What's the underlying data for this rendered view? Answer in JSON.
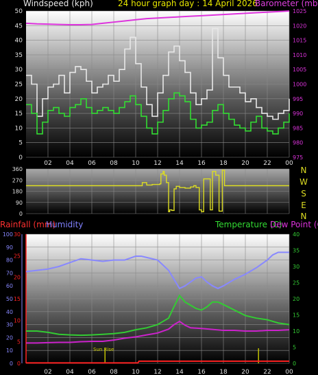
{
  "top": {
    "left_title": "Windspeed (kph)",
    "center_title": "24 hour graph day : 14 April 2026",
    "right_title": "Barometer (mb)"
  },
  "bottom": {
    "rain_title": "Rainfall (mm)",
    "humidity_title": "Humidity",
    "temp_title": "Temperature (C)",
    "dew_title": "Dew Point (C)",
    "sunrise_label": "Sun Rise"
  },
  "colors": {
    "background": "#000000",
    "grid": "#8a8a8a",
    "wind_avg": "#33dd33",
    "wind_gust": "#e8e8e8",
    "barometer": "#dd33dd",
    "direction": "#dddd22",
    "temperature": "#33cc33",
    "dew_point": "#cc22cc",
    "humidity": "#8888ff",
    "rain": "#ff2222",
    "rain_rate": "#cccc00",
    "compass": "#dddd22",
    "left_axis_text": "#dddddd"
  },
  "chart_data": [
    {
      "type": "line",
      "title": "24 hour graph day : 14 April 2026",
      "x_ticks": [
        "02",
        "04",
        "06",
        "08",
        "10",
        "12",
        "14",
        "16",
        "18",
        "20",
        "22",
        "00"
      ],
      "x_range_hours": [
        0,
        24
      ],
      "ylabel": "Windspeed (kph)",
      "ylim": [
        0,
        50
      ],
      "y_ticks": [
        0,
        5,
        10,
        15,
        20,
        25,
        30,
        35,
        40,
        45,
        50
      ],
      "y2label": "Barometer (mb)",
      "y2lim": [
        975,
        1025
      ],
      "y2_ticks": [
        975,
        980,
        985,
        990,
        995,
        1000,
        1005,
        1010,
        1015,
        1020,
        1025
      ],
      "grid": true,
      "series": [
        {
          "name": "Windspeed",
          "axis": "left",
          "color_key": "wind_avg",
          "x": [
            0,
            0.5,
            1,
            1.5,
            2,
            2.5,
            3,
            3.5,
            4,
            4.5,
            5,
            5.5,
            6,
            6.5,
            7,
            7.5,
            8,
            8.5,
            9,
            9.5,
            10,
            10.5,
            11,
            11.5,
            12,
            12.5,
            13,
            13.5,
            14,
            14.5,
            15,
            15.5,
            16,
            16.5,
            17,
            17.5,
            18,
            18.5,
            19,
            19.5,
            20,
            20.5,
            21,
            21.5,
            22,
            22.5,
            23,
            23.5,
            24
          ],
          "y": [
            18,
            15,
            8,
            12,
            16,
            17,
            15,
            14,
            17,
            18,
            20,
            17,
            15,
            16,
            17,
            16,
            15,
            17,
            19,
            21,
            18,
            14,
            10,
            8,
            12,
            16,
            20,
            22,
            21,
            19,
            13,
            10,
            11,
            12,
            16,
            18,
            15,
            13,
            11,
            10,
            9,
            12,
            14,
            10,
            9,
            8,
            10,
            12,
            15
          ]
        },
        {
          "name": "Gust",
          "axis": "left",
          "color_key": "wind_gust",
          "x": [
            0,
            0.5,
            1,
            1.5,
            2,
            2.5,
            3,
            3.5,
            4,
            4.5,
            5,
            5.5,
            6,
            6.5,
            7,
            7.5,
            8,
            8.5,
            9,
            9.5,
            10,
            10.5,
            11,
            11.5,
            12,
            12.5,
            13,
            13.5,
            14,
            14.5,
            15,
            15.5,
            16,
            16.5,
            17,
            17.5,
            18,
            18.5,
            19,
            19.5,
            20,
            20.5,
            21,
            21.5,
            22,
            22.5,
            23,
            23.5,
            24
          ],
          "y": [
            28,
            25,
            14,
            20,
            24,
            25,
            28,
            22,
            29,
            31,
            30,
            26,
            22,
            24,
            25,
            28,
            26,
            30,
            37,
            41,
            32,
            24,
            18,
            14,
            22,
            28,
            36,
            38,
            33,
            29,
            22,
            18,
            20,
            23,
            44,
            34,
            28,
            24,
            24,
            22,
            19,
            20,
            17,
            15,
            14,
            13,
            15,
            16,
            20
          ]
        },
        {
          "name": "Barometer",
          "axis": "right",
          "color_key": "barometer",
          "x": [
            0,
            1,
            2,
            3,
            4,
            5,
            6,
            7,
            8,
            9,
            10,
            11,
            12,
            13,
            14,
            15,
            16,
            17,
            18,
            19,
            20,
            21,
            22,
            23,
            24
          ],
          "y": [
            1020.8,
            1020.6,
            1020.5,
            1020.4,
            1020.3,
            1020.3,
            1020.4,
            1020.8,
            1021.2,
            1021.6,
            1022,
            1022.4,
            1022.6,
            1022.8,
            1023,
            1023.2,
            1023.4,
            1023.6,
            1023.8,
            1024,
            1024.2,
            1024.4,
            1024.6,
            1024.8,
            1025
          ]
        }
      ]
    },
    {
      "type": "line",
      "ylabel": "Wind Direction",
      "ylim": [
        0,
        360
      ],
      "y_ticks": [
        0,
        90,
        180,
        270,
        360
      ],
      "y_tick_labels": [
        "0",
        "90",
        "180",
        "270",
        "360"
      ],
      "compass_labels": [
        "N",
        "W",
        "S",
        "E",
        "N"
      ],
      "x_range_hours": [
        0,
        24
      ],
      "grid": true,
      "series": [
        {
          "name": "Direction",
          "color_key": "direction",
          "x": [
            0,
            10.5,
            10.6,
            11,
            11.5,
            12.2,
            12.3,
            12.5,
            12.6,
            12.8,
            13,
            13.1,
            13.3,
            13.5,
            13.7,
            14,
            14.5,
            15,
            15.3,
            15.5,
            15.8,
            16,
            16.2,
            16.5,
            16.8,
            17,
            17.3,
            17.6,
            17.9,
            18.1,
            20,
            24
          ],
          "y": [
            225,
            225,
            250,
            230,
            235,
            240,
            320,
            340,
            310,
            250,
            15,
            30,
            25,
            200,
            220,
            210,
            205,
            215,
            225,
            210,
            30,
            15,
            280,
            280,
            30,
            340,
            310,
            20,
            350,
            225,
            225,
            225
          ]
        }
      ]
    },
    {
      "type": "line",
      "x_ticks": [
        "02",
        "04",
        "06",
        "08",
        "10",
        "12",
        "14",
        "16",
        "18",
        "20",
        "22",
        "00"
      ],
      "x_range_hours": [
        0,
        24
      ],
      "grid": true,
      "axes": {
        "humidity": {
          "label": "Humidity",
          "lim": [
            0,
            100
          ],
          "ticks": [
            0,
            10,
            20,
            30,
            40,
            50,
            60,
            70,
            80,
            90,
            100
          ]
        },
        "rainfall": {
          "label": "Rainfall (mm)",
          "lim": [
            0,
            30
          ],
          "ticks": [
            0,
            5,
            10,
            15,
            20,
            25,
            30
          ]
        },
        "temperature": {
          "label": "Temperature (C)",
          "lim": [
            0,
            40
          ],
          "ticks": [
            0,
            5,
            10,
            15,
            20,
            25,
            30,
            35,
            40
          ]
        }
      },
      "annotations": [
        {
          "text": "Sun Rise",
          "x_hour": 7.2
        }
      ],
      "series": [
        {
          "name": "Humidity",
          "axis": "humidity",
          "color_key": "humidity",
          "x": [
            0,
            1,
            2,
            3,
            4,
            5,
            6,
            7,
            8,
            9,
            10,
            10.5,
            11,
            12,
            13,
            13.5,
            14,
            14.5,
            15,
            15.5,
            16,
            16.5,
            17,
            17.5,
            18,
            19,
            20,
            21,
            22,
            22.5,
            23,
            24
          ],
          "y": [
            71,
            72,
            73,
            75,
            78,
            81,
            80,
            79,
            80,
            80,
            83,
            83,
            82,
            80,
            72,
            65,
            58,
            60,
            63,
            66,
            67,
            63,
            60,
            58,
            60,
            65,
            69,
            74,
            80,
            84,
            86,
            86
          ]
        },
        {
          "name": "Temperature",
          "axis": "temperature",
          "color_key": "temperature",
          "x": [
            0,
            1,
            2,
            3,
            4,
            5,
            6,
            7,
            8,
            9,
            10,
            11,
            12,
            13,
            13.5,
            14,
            14.5,
            15,
            15.5,
            16,
            16.5,
            17,
            17.5,
            18,
            19,
            20,
            21,
            22,
            23,
            24
          ],
          "y": [
            10,
            10,
            9.6,
            9,
            8.8,
            8.7,
            8.8,
            9,
            9.2,
            9.6,
            10.4,
            11,
            12,
            14,
            17.6,
            21,
            19,
            18,
            17,
            16.5,
            17.5,
            19,
            19,
            18.2,
            16.5,
            14.8,
            14,
            13.5,
            12.5,
            12
          ]
        },
        {
          "name": "Dew Point",
          "axis": "temperature",
          "color_key": "dew_point",
          "x": [
            0,
            1,
            2,
            3,
            4,
            5,
            6,
            7,
            8,
            9,
            10,
            11,
            12,
            13,
            13.5,
            14,
            14.5,
            15,
            16,
            17,
            18,
            19,
            20,
            21,
            22,
            23,
            24
          ],
          "y": [
            6.3,
            6.3,
            6.4,
            6.5,
            6.5,
            6.7,
            6.8,
            6.8,
            7.2,
            7.8,
            8.2,
            8.8,
            9.4,
            10.6,
            12,
            13,
            11.8,
            11,
            10.8,
            10.5,
            10.2,
            10.2,
            10,
            10,
            10.2,
            10.2,
            10.4
          ]
        },
        {
          "name": "Rainfall",
          "axis": "rainfall",
          "color_key": "rain",
          "x": [
            0,
            10.2,
            10.3,
            24
          ],
          "y": [
            0.1,
            0.1,
            0.5,
            0.5
          ]
        }
      ],
      "rain_rate_bars": [
        {
          "x_hour": 7.2,
          "value": 3.5
        },
        {
          "x_hour": 21.2,
          "value": 3.5
        }
      ]
    }
  ]
}
